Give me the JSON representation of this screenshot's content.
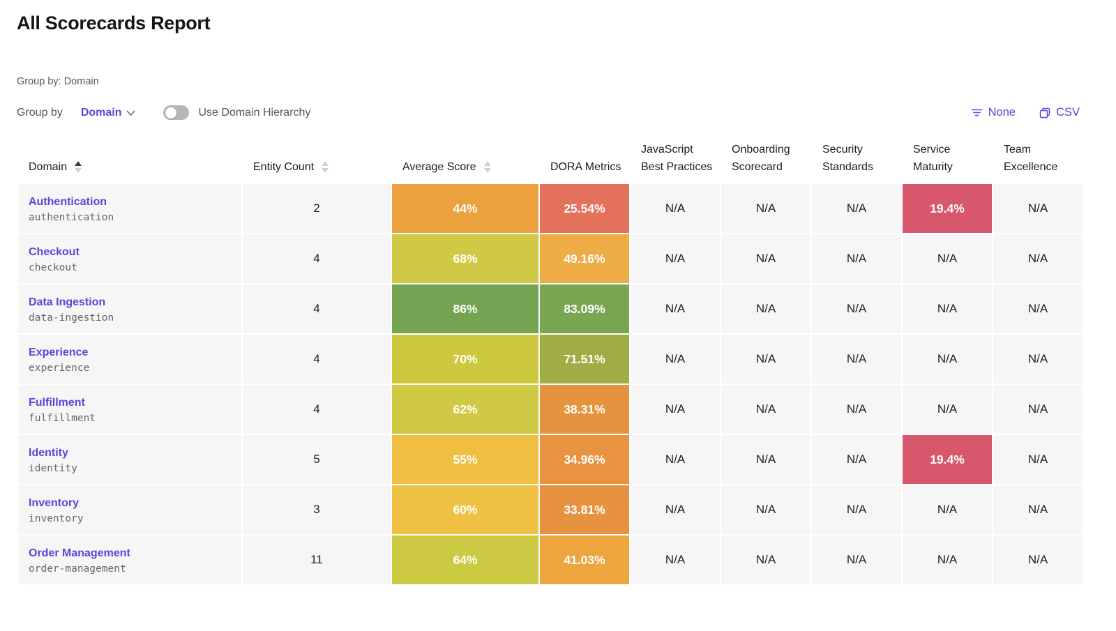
{
  "page": {
    "title": "All Scorecards Report"
  },
  "colors": {
    "accent_purple": "#5B44D9",
    "row_background": "#f6f6f6",
    "toggle_off": "#b6b6ba"
  },
  "toolbar": {
    "group_by_caption": "Group by: Domain",
    "group_by_label": "Group by",
    "group_by_value": "Domain",
    "toggle_label": "Use Domain Hierarchy",
    "toggle_state": "off",
    "filter_label": "None",
    "export_label": "CSV",
    "icons": {
      "filter": "filter-lines-icon",
      "export": "copy-icon",
      "dropdown": "chevron-down-icon"
    }
  },
  "table": {
    "columns": [
      {
        "key": "domain",
        "label": "Domain",
        "sortable": true,
        "sorted": "asc"
      },
      {
        "key": "entity_count",
        "label": "Entity Count",
        "sortable": true,
        "sorted": null
      },
      {
        "key": "average_score",
        "label": "Average Score",
        "sortable": true,
        "sorted": null
      },
      {
        "key": "dora",
        "label": "DORA Metrics",
        "sortable": false,
        "sorted": null
      },
      {
        "key": "js_best_practices",
        "label": "JavaScript Best Practices",
        "sortable": false,
        "sorted": null
      },
      {
        "key": "onboarding",
        "label": "Onboarding Scorecard",
        "sortable": false,
        "sorted": null
      },
      {
        "key": "security",
        "label": "Security Standards",
        "sortable": false,
        "sorted": null
      },
      {
        "key": "service_maturity",
        "label": "Service Maturity",
        "sortable": false,
        "sorted": null
      },
      {
        "key": "team_excellence",
        "label": "Team Excellence",
        "sortable": false,
        "sorted": null
      }
    ],
    "rows": [
      {
        "name": "Authentication",
        "slug": "authentication",
        "entity_count": "2",
        "average_score": {
          "text": "44%",
          "color": "#EBA23E"
        },
        "dora": {
          "text": "25.54%",
          "color": "#E3715C"
        },
        "js_best_practices": "N/A",
        "onboarding": "N/A",
        "security": "N/A",
        "service_maturity": {
          "text": "19.4%",
          "color": "#D7576C"
        },
        "team_excellence": "N/A"
      },
      {
        "name": "Checkout",
        "slug": "checkout",
        "entity_count": "4",
        "average_score": {
          "text": "68%",
          "color": "#CFC945"
        },
        "dora": {
          "text": "49.16%",
          "color": "#EEAC45"
        },
        "js_best_practices": "N/A",
        "onboarding": "N/A",
        "security": "N/A",
        "service_maturity": "N/A",
        "team_excellence": "N/A"
      },
      {
        "name": "Data Ingestion",
        "slug": "data-ingestion",
        "entity_count": "4",
        "average_score": {
          "text": "86%",
          "color": "#74A351"
        },
        "dora": {
          "text": "83.09%",
          "color": "#79A751"
        },
        "js_best_practices": "N/A",
        "onboarding": "N/A",
        "security": "N/A",
        "service_maturity": "N/A",
        "team_excellence": "N/A"
      },
      {
        "name": "Experience",
        "slug": "experience",
        "entity_count": "4",
        "average_score": {
          "text": "70%",
          "color": "#CDC93F"
        },
        "dora": {
          "text": "71.51%",
          "color": "#A0AD44"
        },
        "js_best_practices": "N/A",
        "onboarding": "N/A",
        "security": "N/A",
        "service_maturity": "N/A",
        "team_excellence": "N/A"
      },
      {
        "name": "Fulfillment",
        "slug": "fulfillment",
        "entity_count": "4",
        "average_score": {
          "text": "62%",
          "color": "#CFC944"
        },
        "dora": {
          "text": "38.31%",
          "color": "#E6933F"
        },
        "js_best_practices": "N/A",
        "onboarding": "N/A",
        "security": "N/A",
        "service_maturity": "N/A",
        "team_excellence": "N/A"
      },
      {
        "name": "Identity",
        "slug": "identity",
        "entity_count": "5",
        "average_score": {
          "text": "55%",
          "color": "#F0BE41"
        },
        "dora": {
          "text": "34.96%",
          "color": "#E79340"
        },
        "js_best_practices": "N/A",
        "onboarding": "N/A",
        "security": "N/A",
        "service_maturity": {
          "text": "19.4%",
          "color": "#D7576C"
        },
        "team_excellence": "N/A"
      },
      {
        "name": "Inventory",
        "slug": "inventory",
        "entity_count": "3",
        "average_score": {
          "text": "60%",
          "color": "#F0C243"
        },
        "dora": {
          "text": "33.81%",
          "color": "#E6923F"
        },
        "js_best_practices": "N/A",
        "onboarding": "N/A",
        "security": "N/A",
        "service_maturity": "N/A",
        "team_excellence": "N/A"
      },
      {
        "name": "Order Management",
        "slug": "order-management",
        "entity_count": "11",
        "average_score": {
          "text": "64%",
          "color": "#CCC943"
        },
        "dora": {
          "text": "41.03%",
          "color": "#EDA53E"
        },
        "js_best_practices": "N/A",
        "onboarding": "N/A",
        "security": "N/A",
        "service_maturity": "N/A",
        "team_excellence": "N/A"
      }
    ]
  }
}
